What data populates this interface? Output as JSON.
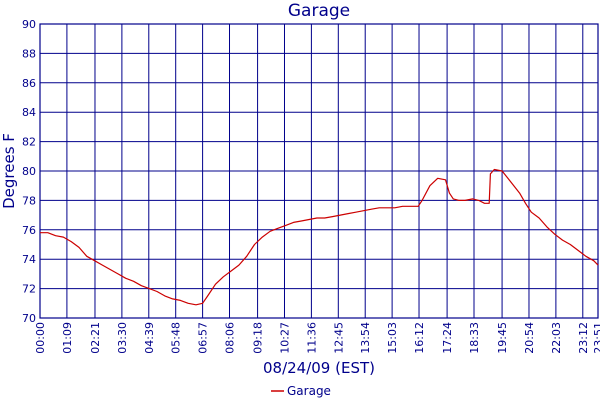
{
  "chart_data": {
    "type": "line",
    "title": "Garage",
    "xlabel": "08/24/09 (EST)",
    "ylabel": "Degrees F",
    "ylim": [
      70,
      90
    ],
    "yticks": [
      "70",
      "72",
      "74",
      "76",
      "78",
      "80",
      "82",
      "84",
      "86",
      "88",
      "90"
    ],
    "xticks": [
      "00:00",
      "01:09",
      "02:21",
      "03:30",
      "04:39",
      "05:48",
      "06:57",
      "08:06",
      "09:18",
      "10:27",
      "11:36",
      "12:45",
      "13:54",
      "15:03",
      "16:12",
      "17:24",
      "18:33",
      "19:45",
      "20:54",
      "22:03",
      "23:12",
      "23:51"
    ],
    "grid": true,
    "legend": "bottom-center",
    "colors": {
      "series": "#cc0000",
      "grid": "#00008b",
      "text": "#00008b"
    },
    "series": [
      {
        "name": "Garage",
        "x": [
          "00:00",
          "00:20",
          "00:40",
          "01:00",
          "01:20",
          "01:40",
          "02:00",
          "02:20",
          "02:40",
          "03:00",
          "03:20",
          "03:40",
          "04:00",
          "04:20",
          "04:40",
          "05:00",
          "05:20",
          "05:40",
          "06:00",
          "06:20",
          "06:40",
          "06:57",
          "07:10",
          "07:30",
          "07:50",
          "08:10",
          "08:30",
          "08:50",
          "09:10",
          "09:30",
          "09:50",
          "10:10",
          "10:30",
          "10:50",
          "11:10",
          "11:30",
          "11:50",
          "12:10",
          "12:30",
          "12:50",
          "13:10",
          "13:30",
          "13:50",
          "14:10",
          "14:30",
          "14:50",
          "15:10",
          "15:30",
          "15:50",
          "16:10",
          "16:20",
          "16:40",
          "17:00",
          "17:20",
          "17:30",
          "17:40",
          "17:55",
          "18:10",
          "18:30",
          "18:45",
          "19:00",
          "19:12",
          "19:15",
          "19:25",
          "19:45",
          "20:00",
          "20:15",
          "20:30",
          "20:45",
          "21:00",
          "21:20",
          "21:40",
          "22:00",
          "22:20",
          "22:40",
          "23:00",
          "23:20",
          "23:40",
          "23:51"
        ],
        "values": [
          75.8,
          75.8,
          75.6,
          75.5,
          75.2,
          74.8,
          74.2,
          73.9,
          73.6,
          73.3,
          73.0,
          72.7,
          72.5,
          72.2,
          72.0,
          71.8,
          71.5,
          71.3,
          71.2,
          71.0,
          70.9,
          71.0,
          71.5,
          72.3,
          72.8,
          73.2,
          73.6,
          74.2,
          75.0,
          75.5,
          75.9,
          76.1,
          76.3,
          76.5,
          76.6,
          76.7,
          76.8,
          76.8,
          76.9,
          77.0,
          77.1,
          77.2,
          77.3,
          77.4,
          77.5,
          77.5,
          77.5,
          77.6,
          77.6,
          77.6,
          78.0,
          79.0,
          79.5,
          79.4,
          78.5,
          78.1,
          78.0,
          78.0,
          78.1,
          78.0,
          77.8,
          77.8,
          79.8,
          80.1,
          80.0,
          79.5,
          79.0,
          78.5,
          77.8,
          77.2,
          76.8,
          76.2,
          75.7,
          75.3,
          75.0,
          74.6,
          74.2,
          73.9,
          73.6
        ]
      }
    ]
  }
}
